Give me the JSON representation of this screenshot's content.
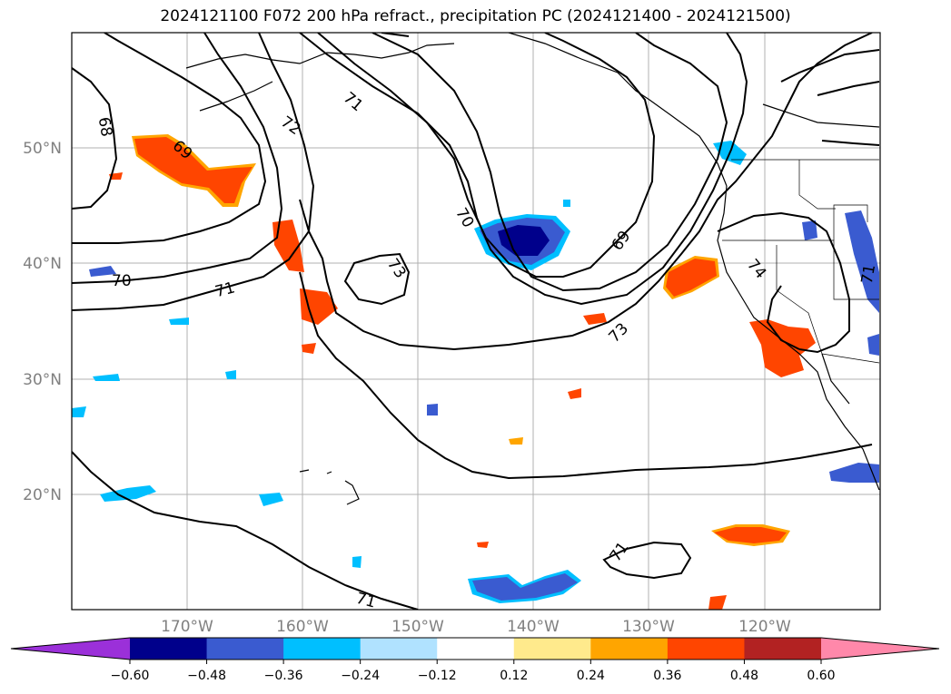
{
  "title": "2024121100 F072 200 hPa refract., precipitation PC (2024121400 - 2024121500)",
  "lat_labels": [
    "50°N",
    "40°N",
    "30°N",
    "20°N"
  ],
  "lon_labels": [
    "170°W",
    "160°W",
    "150°W",
    "140°W",
    "130°W",
    "120°W"
  ],
  "contour_labels": [
    "68",
    "69",
    "70",
    "71",
    "72",
    "71",
    "70",
    "73",
    "69",
    "73",
    "74",
    "71",
    "71",
    "71"
  ],
  "colorbar": {
    "ticks": [
      "−0.60",
      "−0.48",
      "−0.36",
      "−0.24",
      "−0.12",
      "0.12",
      "0.24",
      "0.36",
      "0.48",
      "0.60"
    ],
    "colors": [
      "#9b30d9",
      "#00008b",
      "#3a5bd0",
      "#00bfff",
      "#b0e2ff",
      "#ffffff",
      "#ffea8c",
      "#ffa500",
      "#ff4500",
      "#b22222",
      "#ff88aa"
    ]
  }
}
